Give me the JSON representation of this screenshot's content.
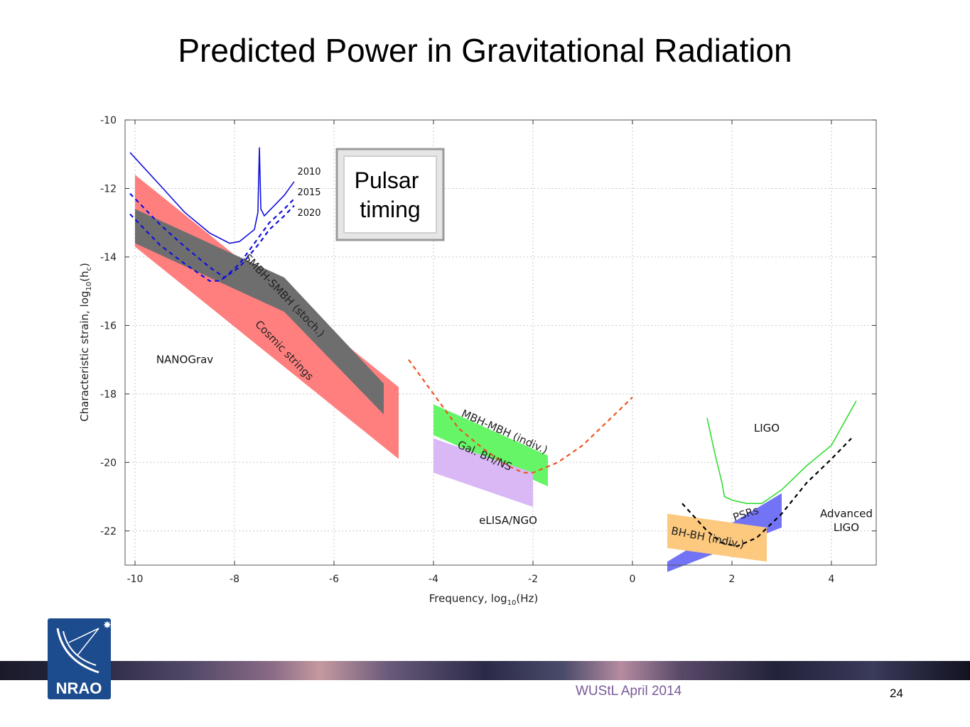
{
  "slide": {
    "title": "Predicted Power in Gravitational Radiation",
    "footer_text": "WUStL April 2014",
    "page_number": "24",
    "logo_text": "NRAO"
  },
  "chart_data": {
    "type": "area",
    "xlabel": "Frequency, log",
    "xlabel_sub": "10",
    "xlabel_suffix": "(Hz)",
    "ylabel": "Characteristic strain, log",
    "ylabel_sub": "10",
    "ylabel_suffix": "(h",
    "ylabel_sub2": "c",
    "ylabel_end": ")",
    "xlim": [
      -10.2,
      4.9
    ],
    "ylim": [
      -23,
      -10
    ],
    "xticks": [
      -10,
      -8,
      -6,
      -4,
      -2,
      0,
      2,
      4
    ],
    "yticks": [
      -10,
      -12,
      -14,
      -16,
      -18,
      -20,
      -22
    ],
    "grid": true,
    "inset_label": [
      "Pulsar",
      "timing"
    ],
    "bands": [
      {
        "name": "cosmic-strings",
        "color": "#ff7f7f",
        "points": [
          [
            -10,
            -11.6
          ],
          [
            -4.7,
            -17.8
          ],
          [
            -4.7,
            -19.9
          ],
          [
            -10,
            -13.7
          ]
        ]
      },
      {
        "name": "smbh-smbh",
        "color": "#6e6e6e",
        "points": [
          [
            -10,
            -12.6
          ],
          [
            -7,
            -14.6
          ],
          [
            -5,
            -17.7
          ],
          [
            -5,
            -18.6
          ],
          [
            -7,
            -15.6
          ],
          [
            -10,
            -13.6
          ]
        ]
      },
      {
        "name": "mbh-mbh",
        "color": "#66f566",
        "points": [
          [
            -4,
            -18.3
          ],
          [
            -1.7,
            -19.8
          ],
          [
            -1.7,
            -20.7
          ],
          [
            -4,
            -19.2
          ]
        ]
      },
      {
        "name": "gal-bh-ns",
        "color": "#d9b8f5",
        "points": [
          [
            -4,
            -19.3
          ],
          [
            -2,
            -20.3
          ],
          [
            -2,
            -21.3
          ],
          [
            -4,
            -20.3
          ]
        ]
      },
      {
        "name": "psrs",
        "color": "#7373f5",
        "points": [
          [
            0.7,
            -22.9
          ],
          [
            3,
            -20.9
          ],
          [
            3,
            -21.9
          ],
          [
            0.7,
            -23.2
          ]
        ]
      },
      {
        "name": "bh-bh",
        "color": "#fcc97e",
        "points": [
          [
            0.7,
            -21.5
          ],
          [
            2.7,
            -21.9
          ],
          [
            2.7,
            -22.9
          ],
          [
            0.7,
            -22.5
          ]
        ]
      }
    ],
    "curves": [
      {
        "name": "nanograv-2010",
        "color": "#1010dd",
        "style": "solid",
        "points": [
          [
            -10.1,
            -10.95
          ],
          [
            -9.5,
            -11.9
          ],
          [
            -9,
            -12.7
          ],
          [
            -8.5,
            -13.3
          ],
          [
            -8.1,
            -13.6
          ],
          [
            -7.9,
            -13.55
          ],
          [
            -7.6,
            -13.2
          ],
          [
            -7.53,
            -12.7
          ],
          [
            -7.5,
            -10.8
          ],
          [
            -7.47,
            -12.6
          ],
          [
            -7.4,
            -12.8
          ],
          [
            -7.2,
            -12.5
          ],
          [
            -7,
            -12.2
          ],
          [
            -6.8,
            -11.8
          ]
        ]
      },
      {
        "name": "nanograv-2015",
        "color": "#1010dd",
        "style": "dashed",
        "points": [
          [
            -10.1,
            -12.15
          ],
          [
            -9.5,
            -13.05
          ],
          [
            -9,
            -13.7
          ],
          [
            -8.5,
            -14.3
          ],
          [
            -8.2,
            -14.6
          ],
          [
            -7.9,
            -14.2
          ],
          [
            -7.5,
            -13.4
          ],
          [
            -7.3,
            -13
          ],
          [
            -7,
            -12.6
          ],
          [
            -6.8,
            -12.3
          ]
        ]
      },
      {
        "name": "nanograv-2020",
        "color": "#1010dd",
        "style": "dashed",
        "points": [
          [
            -10.1,
            -12.75
          ],
          [
            -9.5,
            -13.65
          ],
          [
            -9,
            -14.2
          ],
          [
            -8.5,
            -14.7
          ],
          [
            -8.3,
            -14.7
          ],
          [
            -7.9,
            -14.3
          ],
          [
            -7.5,
            -13.6
          ],
          [
            -7.3,
            -13.2
          ],
          [
            -7,
            -12.8
          ],
          [
            -6.8,
            -12.5
          ]
        ]
      },
      {
        "name": "elisa-ngo",
        "color": "#ee5522",
        "style": "dashed",
        "points": [
          [
            -4.5,
            -17
          ],
          [
            -4,
            -18
          ],
          [
            -3.5,
            -19
          ],
          [
            -3,
            -19.6
          ],
          [
            -2.5,
            -20.1
          ],
          [
            -2.2,
            -20.3
          ],
          [
            -2,
            -20.3
          ],
          [
            -1.5,
            -20
          ],
          [
            -1,
            -19.5
          ],
          [
            -0.5,
            -18.8
          ],
          [
            0,
            -18.1
          ]
        ]
      },
      {
        "name": "ligo",
        "color": "#33dd33",
        "style": "solid",
        "points": [
          [
            1.5,
            -18.7
          ],
          [
            1.65,
            -19.7
          ],
          [
            1.8,
            -20.6
          ],
          [
            1.85,
            -21
          ],
          [
            2,
            -21.1
          ],
          [
            2.3,
            -21.2
          ],
          [
            2.6,
            -21.2
          ],
          [
            3,
            -20.8
          ],
          [
            3.5,
            -20.1
          ],
          [
            4,
            -19.5
          ],
          [
            4.5,
            -18.2
          ]
        ]
      },
      {
        "name": "advanced-ligo",
        "color": "#000000",
        "style": "dashed",
        "points": [
          [
            1,
            -21.2
          ],
          [
            1.5,
            -22
          ],
          [
            1.8,
            -22.35
          ],
          [
            2.1,
            -22.45
          ],
          [
            2.5,
            -22.2
          ],
          [
            3,
            -21.5
          ],
          [
            3.5,
            -20.6
          ],
          [
            4,
            -19.9
          ],
          [
            4.4,
            -19.3
          ]
        ]
      }
    ],
    "annotations": [
      {
        "text": "NANOGrav",
        "x": -9.0,
        "y": -17.1,
        "rotate": 0,
        "size": 15,
        "color": "#111111"
      },
      {
        "text": "SMBH-SMBH (stoch.)",
        "x": -7.05,
        "y": -15.2,
        "rotate": 46,
        "size": 15,
        "color": "#222222"
      },
      {
        "text": "Cosmic strings",
        "x": -7.05,
        "y": -16.8,
        "rotate": 46,
        "size": 15,
        "color": "#222222"
      },
      {
        "text": "2010",
        "x": -6.5,
        "y": -11.6,
        "rotate": 0,
        "size": 13,
        "color": "#111111"
      },
      {
        "text": "2015",
        "x": -6.5,
        "y": -12.2,
        "rotate": 0,
        "size": 13,
        "color": "#111111"
      },
      {
        "text": "2020",
        "x": -6.5,
        "y": -12.8,
        "rotate": 0,
        "size": 13,
        "color": "#111111"
      },
      {
        "text": "MBH-MBH (indiv.)",
        "x": -2.6,
        "y": -19.2,
        "rotate": 24,
        "size": 15,
        "color": "#222222"
      },
      {
        "text": "Gal. BH/NS",
        "x": -3.0,
        "y": -19.9,
        "rotate": 24,
        "size": 15,
        "color": "#222222"
      },
      {
        "text": "eLISA/NGO",
        "x": -2.5,
        "y": -21.8,
        "rotate": 0,
        "size": 15,
        "color": "#111111"
      },
      {
        "text": "LIGO",
        "x": 2.7,
        "y": -19.1,
        "rotate": 0,
        "size": 15,
        "color": "#111111"
      },
      {
        "text": "PSRs",
        "x": 2.3,
        "y": -21.6,
        "rotate": -18,
        "size": 15,
        "color": "#222222"
      },
      {
        "text": "BH-BH (indiv.)",
        "x": 1.5,
        "y": -22.3,
        "rotate": 11,
        "size": 15,
        "color": "#222222"
      },
      {
        "text": "Advanced",
        "x": 4.3,
        "y": -21.6,
        "rotate": 0,
        "size": 15,
        "color": "#111111"
      },
      {
        "text": "LIGO",
        "x": 4.3,
        "y": -22.0,
        "rotate": 0,
        "size": 15,
        "color": "#111111"
      }
    ]
  }
}
